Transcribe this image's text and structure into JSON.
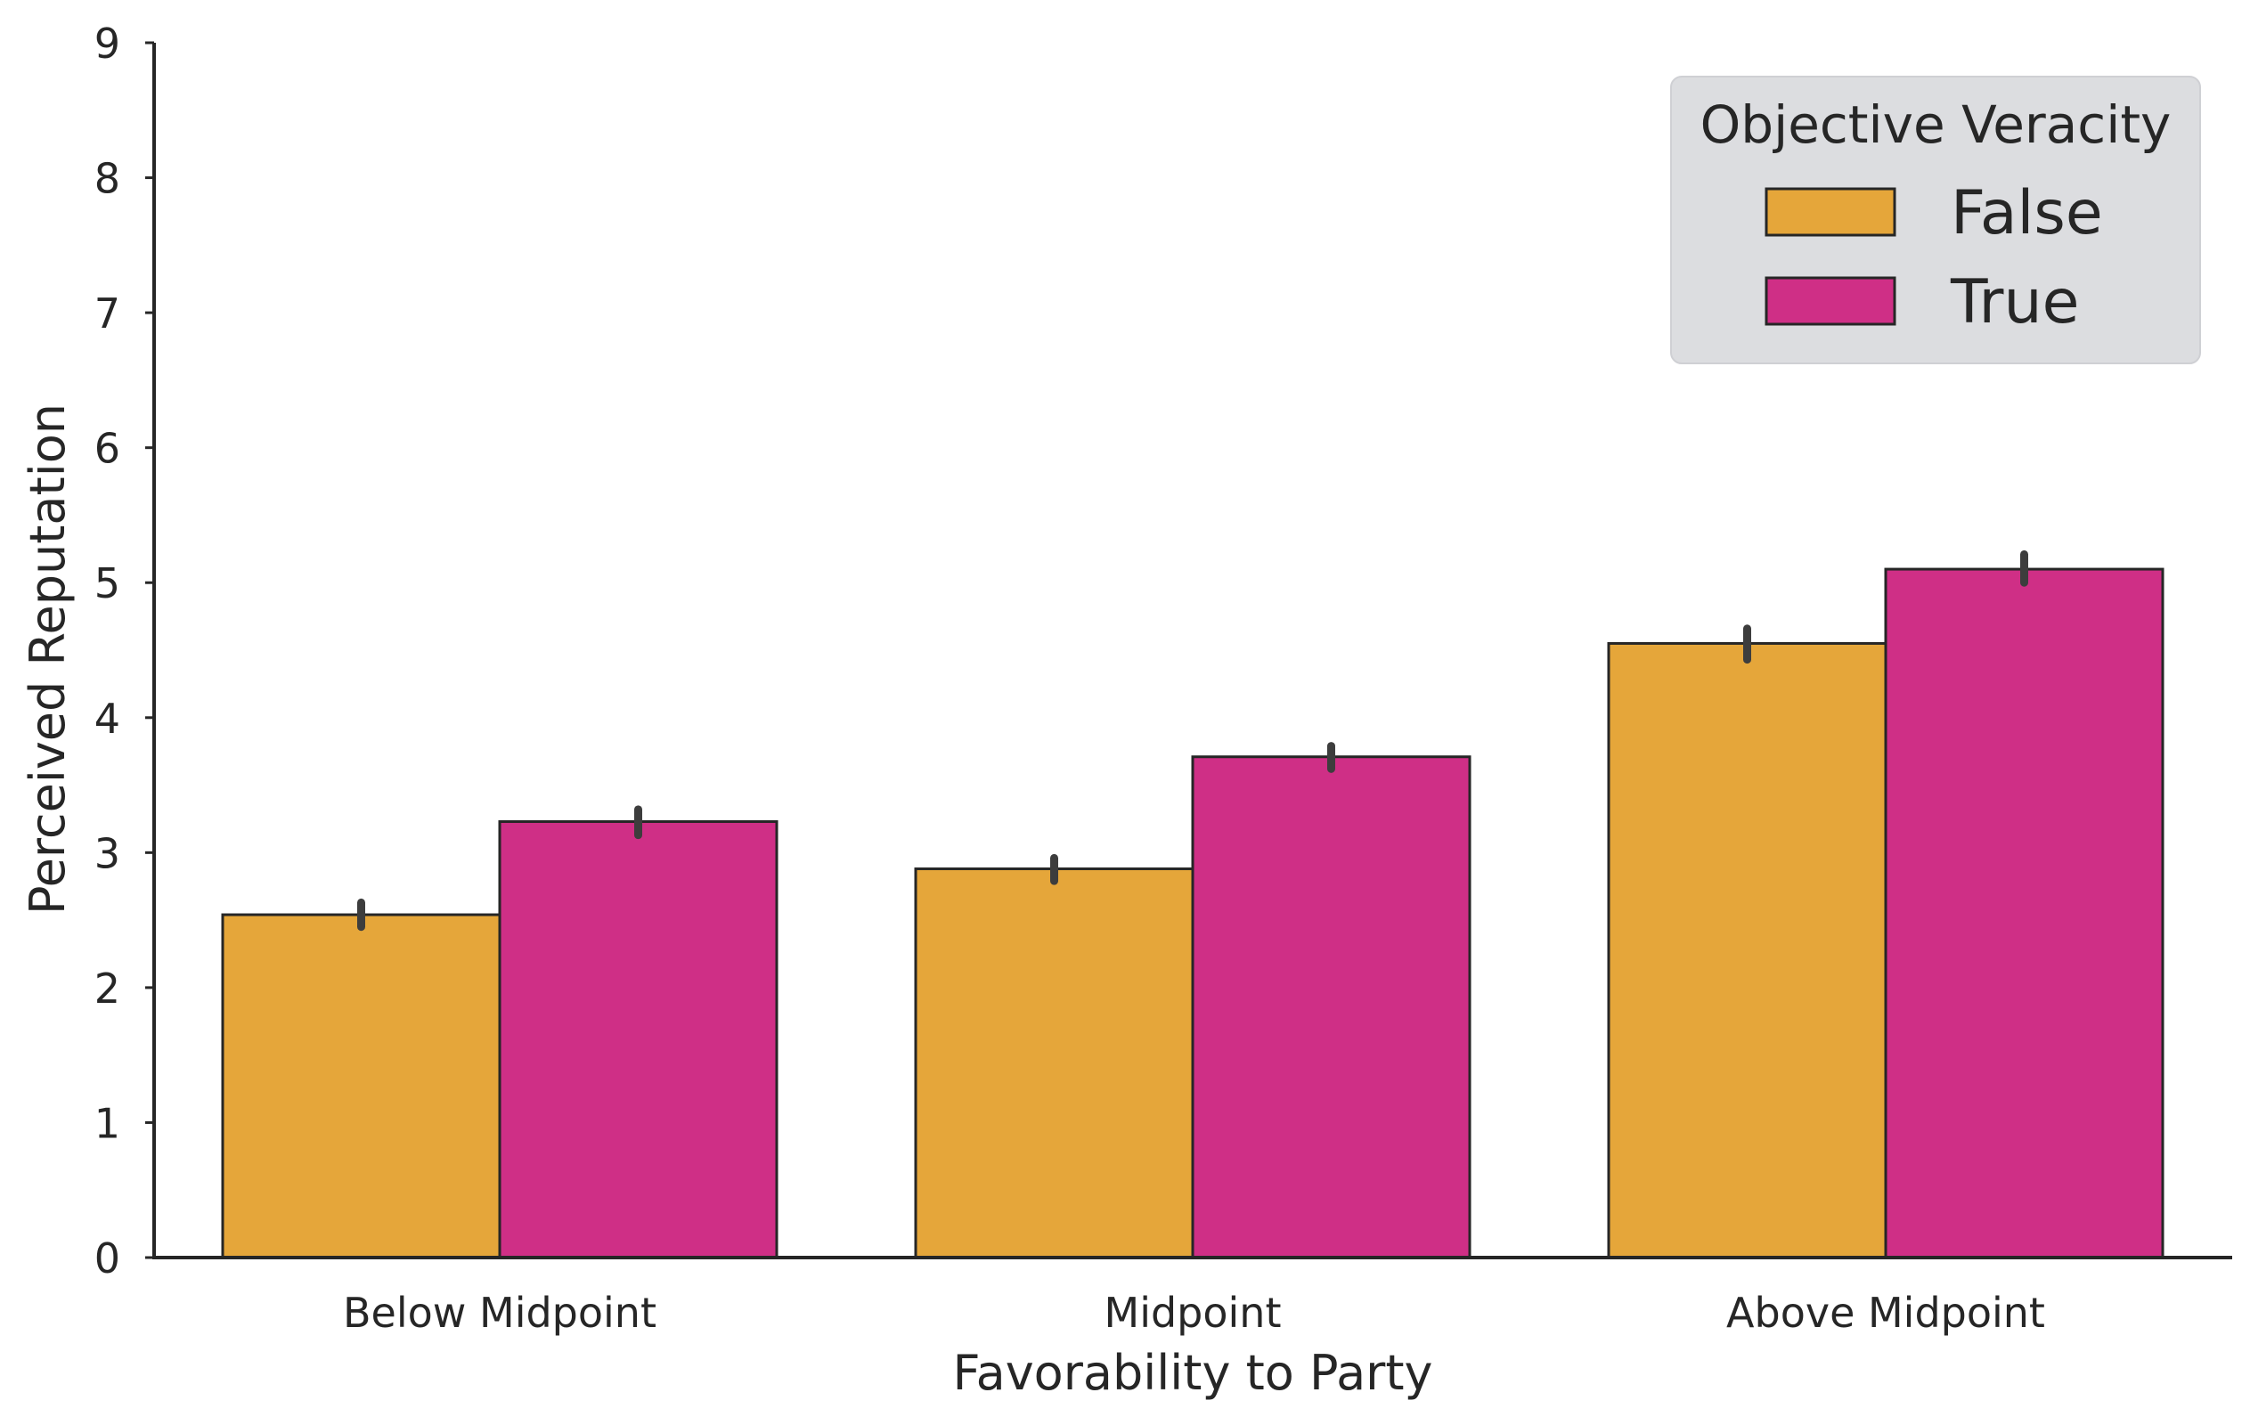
{
  "colors": {
    "false_bar": "#e5a63a",
    "true_bar": "#cf2f86",
    "edge": "#262626",
    "legend_bg": "#dcdde0"
  },
  "chart_data": {
    "type": "bar",
    "xlabel": "Favorability to Party",
    "ylabel": "Perceived Reputation",
    "ylim": [
      0,
      9
    ],
    "yticks": [
      "0",
      "1",
      "2",
      "3",
      "4",
      "5",
      "6",
      "7",
      "8",
      "9"
    ],
    "categories": [
      "Below Midpoint",
      "Midpoint",
      "Above Midpoint"
    ],
    "legend": {
      "title": "Objective Veracity",
      "placement": "top-right"
    },
    "series": [
      {
        "name": "False",
        "values": [
          2.54,
          2.88,
          4.55
        ],
        "ci_low": [
          2.45,
          2.79,
          4.43
        ],
        "ci_high": [
          2.63,
          2.96,
          4.66
        ]
      },
      {
        "name": "True",
        "values": [
          3.23,
          3.71,
          5.1
        ],
        "ci_low": [
          3.13,
          3.62,
          5.0
        ],
        "ci_high": [
          3.32,
          3.79,
          5.21
        ]
      }
    ]
  }
}
